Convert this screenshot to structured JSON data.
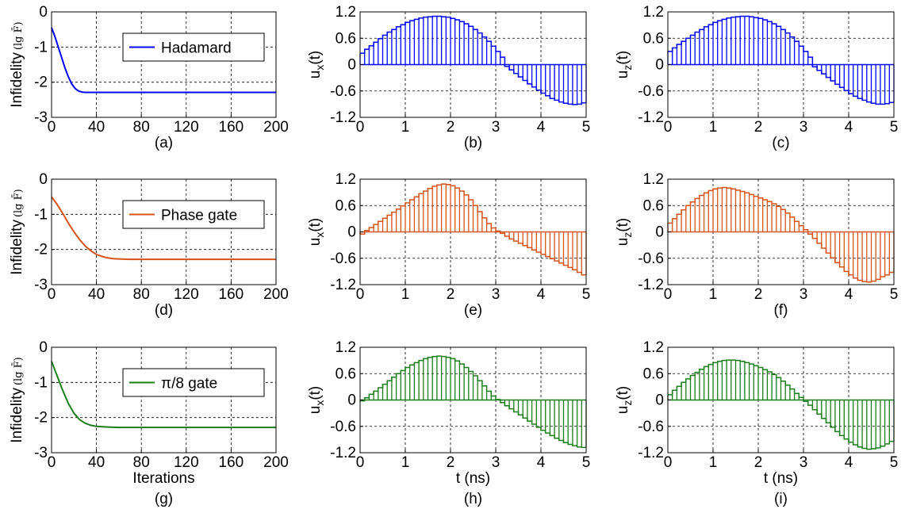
{
  "chart_data": [
    {
      "type": "line",
      "panel": "(a)",
      "xlabel": "",
      "ylabel": "Infidelity",
      "ylabel_unit": "lg F̄",
      "xlim": [
        0,
        200
      ],
      "ylim": [
        -3,
        0
      ],
      "xticks": [
        "0",
        "40",
        "80",
        "120",
        "160",
        "200"
      ],
      "xtick_values": [
        0,
        40,
        80,
        120,
        160,
        200
      ],
      "yticks": [
        "0",
        "-1",
        "-2",
        "-3"
      ],
      "ytick_values": [
        0,
        -1,
        -2,
        -3
      ],
      "grid": true,
      "legend_position": "top-right",
      "series": [
        {
          "name": "Hadamard",
          "color": "#0000ff",
          "x": [
            0,
            3,
            6,
            9,
            12,
            15,
            18,
            21,
            24,
            27,
            30,
            35,
            40,
            60,
            80,
            120,
            160,
            200
          ],
          "y": [
            -0.45,
            -0.7,
            -1.0,
            -1.3,
            -1.6,
            -1.85,
            -2.05,
            -2.18,
            -2.25,
            -2.28,
            -2.29,
            -2.29,
            -2.29,
            -2.29,
            -2.29,
            -2.29,
            -2.29,
            -2.29
          ]
        }
      ]
    },
    {
      "type": "bar",
      "panel": "(b)",
      "xlabel": "",
      "ylabel": "u_x(t)",
      "ylabel_main": "u",
      "ylabel_sub": "x",
      "ylabel_tail": "(t)",
      "xlim": [
        0,
        5
      ],
      "ylim": [
        -1.2,
        1.2
      ],
      "xticks": [
        "0",
        "1",
        "2",
        "3",
        "4",
        "5"
      ],
      "xtick_values": [
        0,
        1,
        2,
        3,
        4,
        5
      ],
      "yticks": [
        "1.2",
        "0.6",
        "0",
        "-0.6",
        "-1.2"
      ],
      "ytick_values": [
        1.2,
        0.6,
        0,
        -0.6,
        -1.2
      ],
      "grid": true,
      "color": "#0000ff",
      "bin_width": 0.1,
      "values": [
        0.26,
        0.35,
        0.43,
        0.51,
        0.59,
        0.67,
        0.74,
        0.8,
        0.86,
        0.91,
        0.96,
        1.0,
        1.03,
        1.06,
        1.08,
        1.09,
        1.1,
        1.1,
        1.09,
        1.08,
        1.05,
        1.02,
        0.98,
        0.93,
        0.87,
        0.8,
        0.72,
        0.63,
        0.53,
        0.42,
        0.3,
        0.17,
        -0.04,
        -0.12,
        -0.2,
        -0.28,
        -0.36,
        -0.44,
        -0.51,
        -0.58,
        -0.65,
        -0.71,
        -0.77,
        -0.81,
        -0.85,
        -0.88,
        -0.9,
        -0.91,
        -0.9,
        -0.87
      ]
    },
    {
      "type": "bar",
      "panel": "(c)",
      "xlabel": "",
      "ylabel": "u_z(t)",
      "ylabel_main": "u",
      "ylabel_sub": "z",
      "ylabel_tail": "(t)",
      "xlim": [
        0,
        5
      ],
      "ylim": [
        -1.2,
        1.2
      ],
      "xticks": [
        "0",
        "1",
        "2",
        "3",
        "4",
        "5"
      ],
      "xtick_values": [
        0,
        1,
        2,
        3,
        4,
        5
      ],
      "yticks": [
        "1.2",
        "0.6",
        "0",
        "-0.6",
        "-1.2"
      ],
      "ytick_values": [
        1.2,
        0.6,
        0,
        -0.6,
        -1.2
      ],
      "grid": true,
      "color": "#0000ff",
      "bin_width": 0.1,
      "values": [
        0.3,
        0.38,
        0.46,
        0.53,
        0.6,
        0.67,
        0.74,
        0.8,
        0.86,
        0.91,
        0.96,
        1.0,
        1.03,
        1.06,
        1.08,
        1.09,
        1.1,
        1.1,
        1.09,
        1.07,
        1.05,
        1.02,
        0.98,
        0.93,
        0.87,
        0.8,
        0.72,
        0.63,
        0.53,
        0.42,
        0.3,
        0.17,
        -0.05,
        -0.13,
        -0.21,
        -0.29,
        -0.37,
        -0.45,
        -0.52,
        -0.59,
        -0.66,
        -0.72,
        -0.77,
        -0.81,
        -0.85,
        -0.88,
        -0.9,
        -0.9,
        -0.89,
        -0.86
      ]
    },
    {
      "type": "line",
      "panel": "(d)",
      "xlabel": "",
      "ylabel": "Infidelity",
      "ylabel_unit": "lg F̄",
      "xlim": [
        0,
        200
      ],
      "ylim": [
        -3,
        0
      ],
      "xticks": [
        "0",
        "40",
        "80",
        "120",
        "160",
        "200"
      ],
      "xtick_values": [
        0,
        40,
        80,
        120,
        160,
        200
      ],
      "yticks": [
        "0",
        "-1",
        "-2",
        "-3"
      ],
      "ytick_values": [
        0,
        -1,
        -2,
        -3
      ],
      "grid": true,
      "legend_position": "top-right",
      "series": [
        {
          "name": "Phase gate",
          "color": "#d95319",
          "x": [
            0,
            5,
            10,
            15,
            20,
            25,
            30,
            35,
            40,
            45,
            50,
            55,
            60,
            70,
            80,
            120,
            160,
            200
          ],
          "y": [
            -0.5,
            -0.72,
            -0.98,
            -1.25,
            -1.5,
            -1.72,
            -1.9,
            -2.04,
            -2.14,
            -2.2,
            -2.24,
            -2.26,
            -2.27,
            -2.28,
            -2.28,
            -2.28,
            -2.28,
            -2.28
          ]
        }
      ]
    },
    {
      "type": "bar",
      "panel": "(e)",
      "xlabel": "",
      "ylabel": "u_x(t)",
      "ylabel_main": "u",
      "ylabel_sub": "x",
      "ylabel_tail": "(t)",
      "xlim": [
        0,
        5
      ],
      "ylim": [
        -1.2,
        1.2
      ],
      "xticks": [
        "0",
        "1",
        "2",
        "3",
        "4",
        "5"
      ],
      "xtick_values": [
        0,
        1,
        2,
        3,
        4,
        5
      ],
      "yticks": [
        "1.2",
        "0.6",
        "0",
        "-0.6",
        "-1.2"
      ],
      "ytick_values": [
        1.2,
        0.6,
        0,
        -0.6,
        -1.2
      ],
      "grid": true,
      "color": "#d95319",
      "bin_width": 0.1,
      "values": [
        -0.05,
        0.03,
        0.1,
        0.17,
        0.24,
        0.31,
        0.38,
        0.45,
        0.52,
        0.59,
        0.66,
        0.73,
        0.8,
        0.87,
        0.93,
        0.99,
        1.04,
        1.07,
        1.09,
        1.08,
        1.05,
        1.0,
        0.93,
        0.84,
        0.73,
        0.6,
        0.46,
        0.32,
        0.19,
        0.09,
        0.02,
        -0.03,
        -0.1,
        -0.16,
        -0.21,
        -0.26,
        -0.31,
        -0.36,
        -0.41,
        -0.46,
        -0.51,
        -0.56,
        -0.61,
        -0.66,
        -0.71,
        -0.76,
        -0.81,
        -0.86,
        -0.92,
        -0.98
      ]
    },
    {
      "type": "bar",
      "panel": "(f)",
      "xlabel": "",
      "ylabel": "u_z(t)",
      "ylabel_main": "u",
      "ylabel_sub": "z",
      "ylabel_tail": "(t)",
      "xlim": [
        0,
        5
      ],
      "ylim": [
        -1.2,
        1.2
      ],
      "xticks": [
        "0",
        "1",
        "2",
        "3",
        "4",
        "5"
      ],
      "xtick_values": [
        0,
        1,
        2,
        3,
        4,
        5
      ],
      "yticks": [
        "1.2",
        "0.6",
        "0",
        "-0.6",
        "-1.2"
      ],
      "ytick_values": [
        1.2,
        0.6,
        0,
        -0.6,
        -1.2
      ],
      "grid": true,
      "color": "#d95319",
      "bin_width": 0.1,
      "values": [
        0.2,
        0.3,
        0.4,
        0.5,
        0.6,
        0.68,
        0.76,
        0.83,
        0.89,
        0.94,
        0.98,
        1.0,
        1.01,
        1.0,
        0.98,
        0.95,
        0.92,
        0.89,
        0.85,
        0.81,
        0.77,
        0.73,
        0.69,
        0.64,
        0.58,
        0.51,
        0.43,
        0.34,
        0.24,
        0.14,
        0.05,
        -0.05,
        -0.15,
        -0.26,
        -0.37,
        -0.48,
        -0.59,
        -0.7,
        -0.8,
        -0.9,
        -0.98,
        -1.05,
        -1.1,
        -1.13,
        -1.14,
        -1.12,
        -1.08,
        -1.02,
        -0.98,
        -0.92
      ]
    },
    {
      "type": "line",
      "panel": "(g)",
      "xlabel": "Iterations",
      "ylabel": "Infidelity",
      "ylabel_unit": "lg F̄",
      "xlim": [
        0,
        200
      ],
      "ylim": [
        -3,
        0
      ],
      "xticks": [
        "0",
        "40",
        "80",
        "120",
        "160",
        "200"
      ],
      "xtick_values": [
        0,
        40,
        80,
        120,
        160,
        200
      ],
      "yticks": [
        "0",
        "-1",
        "-2",
        "-3"
      ],
      "ytick_values": [
        0,
        -1,
        -2,
        -3
      ],
      "grid": true,
      "legend_position": "top-right",
      "series": [
        {
          "name": "π/8 gate",
          "color": "#1a7f1a",
          "x": [
            0,
            3,
            6,
            9,
            12,
            15,
            20,
            25,
            30,
            35,
            40,
            50,
            60,
            80,
            120,
            160,
            200
          ],
          "y": [
            -0.4,
            -0.65,
            -0.9,
            -1.15,
            -1.38,
            -1.6,
            -1.88,
            -2.06,
            -2.16,
            -2.22,
            -2.25,
            -2.27,
            -2.28,
            -2.28,
            -2.28,
            -2.28,
            -2.28
          ]
        }
      ]
    },
    {
      "type": "bar",
      "panel": "(h)",
      "xlabel": "t (ns)",
      "ylabel": "u_x(t)",
      "ylabel_main": "u",
      "ylabel_sub": "x",
      "ylabel_tail": "(t)",
      "xlim": [
        0,
        5
      ],
      "ylim": [
        -1.2,
        1.2
      ],
      "xticks": [
        "0",
        "1",
        "2",
        "3",
        "4",
        "5"
      ],
      "xtick_values": [
        0,
        1,
        2,
        3,
        4,
        5
      ],
      "yticks": [
        "1.2",
        "0.6",
        "0",
        "-0.6",
        "-1.2"
      ],
      "ytick_values": [
        1.2,
        0.6,
        0,
        -0.6,
        -1.2
      ],
      "grid": true,
      "color": "#1a7f1a",
      "bin_width": 0.1,
      "values": [
        -0.02,
        0.05,
        0.13,
        0.2,
        0.28,
        0.36,
        0.44,
        0.52,
        0.6,
        0.67,
        0.74,
        0.8,
        0.85,
        0.9,
        0.94,
        0.97,
        0.99,
        1.0,
        0.99,
        0.97,
        0.94,
        0.89,
        0.82,
        0.74,
        0.65,
        0.55,
        0.44,
        0.32,
        0.2,
        0.09,
        0.01,
        -0.06,
        -0.13,
        -0.2,
        -0.27,
        -0.34,
        -0.41,
        -0.48,
        -0.55,
        -0.62,
        -0.69,
        -0.75,
        -0.81,
        -0.87,
        -0.92,
        -0.97,
        -1.01,
        -1.04,
        -1.07,
        -1.08
      ]
    },
    {
      "type": "bar",
      "panel": "(i)",
      "xlabel": "t (ns)",
      "ylabel": "u_z(t)",
      "ylabel_main": "u",
      "ylabel_sub": "z",
      "ylabel_tail": "(t)",
      "xlim": [
        0,
        5
      ],
      "ylim": [
        -1.2,
        1.2
      ],
      "xticks": [
        "0",
        "1",
        "2",
        "3",
        "4",
        "5"
      ],
      "xtick_values": [
        0,
        1,
        2,
        3,
        4,
        5
      ],
      "yticks": [
        "1.2",
        "0.6",
        "0",
        "-0.6",
        "-1.2"
      ],
      "ytick_values": [
        1.2,
        0.6,
        0,
        -0.6,
        -1.2
      ],
      "grid": true,
      "color": "#1a7f1a",
      "bin_width": 0.1,
      "values": [
        0.12,
        0.22,
        0.31,
        0.4,
        0.48,
        0.56,
        0.63,
        0.7,
        0.76,
        0.81,
        0.85,
        0.88,
        0.9,
        0.91,
        0.91,
        0.9,
        0.88,
        0.85,
        0.82,
        0.78,
        0.74,
        0.69,
        0.64,
        0.58,
        0.51,
        0.43,
        0.34,
        0.25,
        0.15,
        0.06,
        -0.03,
        -0.12,
        -0.22,
        -0.32,
        -0.42,
        -0.52,
        -0.62,
        -0.72,
        -0.81,
        -0.89,
        -0.96,
        -1.02,
        -1.07,
        -1.1,
        -1.12,
        -1.11,
        -1.09,
        -1.05,
        -1.0,
        -0.94
      ]
    }
  ]
}
